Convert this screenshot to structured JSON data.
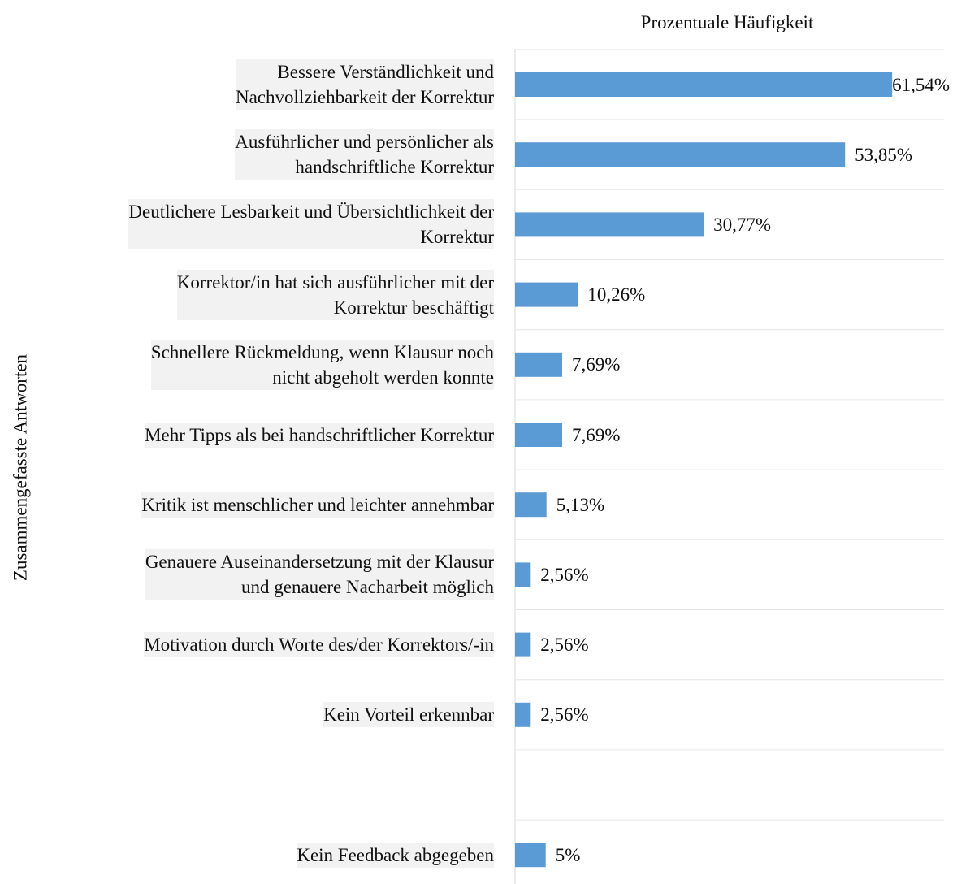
{
  "chart_data": {
    "type": "barh",
    "title": "Prozentuale Häufigkeit",
    "ylabel": "Zusammengefasste Antworten",
    "categories": [
      "Bessere Verständlichkeit und\nNachvollziehbarkeit der Korrektur",
      "Ausführlicher und persönlicher als\nhandschriftliche Korrektur",
      "Deutlichere Lesbarkeit und Übersichtlichkeit der\nKorrektur",
      "Korrektor/in hat sich ausführlicher mit der\nKorrektur beschäftigt",
      "Schnellere Rückmeldung, wenn Klausur noch\nnicht abgeholt werden konnte",
      "Mehr Tipps als bei handschriftlicher Korrektur",
      "Kritik ist menschlicher und leichter annehmbar",
      "Genauere Auseinandersetzung mit der Klausur\nund genauere Nacharbeit möglich",
      "Motivation durch Worte des/der Korrektors/-in",
      "Kein Vorteil erkennbar",
      null,
      "Kein Feedback abgegeben"
    ],
    "values": [
      61.54,
      53.85,
      30.77,
      10.26,
      7.69,
      7.69,
      5.13,
      2.56,
      2.56,
      2.56,
      null,
      5
    ],
    "value_labels": [
      "61,54%",
      "53,85%",
      "30,77%",
      "10,26%",
      "7,69%",
      "7,69%",
      "5,13%",
      "2,56%",
      "2,56%",
      "2,56%",
      null,
      "5%"
    ],
    "color": "#5b9bd5",
    "xlim": [
      0,
      70
    ],
    "grid": true
  }
}
